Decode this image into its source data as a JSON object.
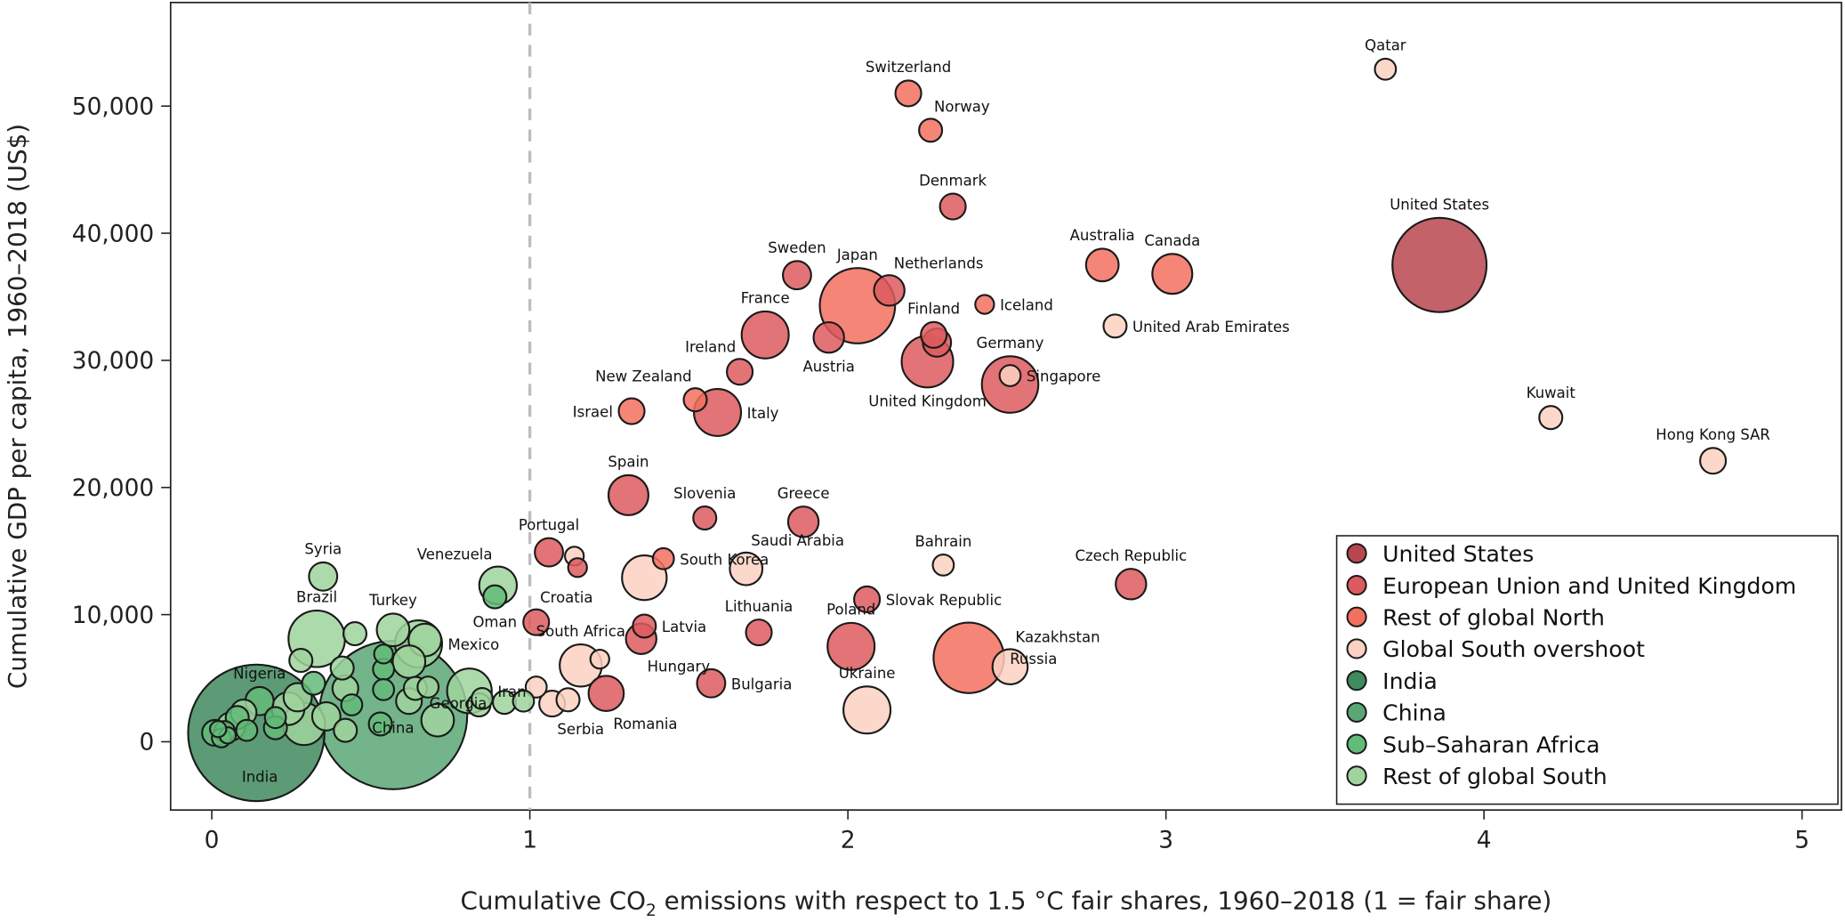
{
  "chart_data": {
    "type": "scatter",
    "bubble": true,
    "xlabel_parts": [
      "Cumulative CO",
      "2",
      " emissions with respect to 1.5 °C fair shares, 1960–2018 (1 = fair share)"
    ],
    "ylabel": "Cumulative GDP per capita, 1960–2018 (US$)",
    "xlim": [
      -0.13,
      5.1
    ],
    "ylim": [
      -5500,
      58000
    ],
    "xticks": [
      0,
      1,
      2,
      3,
      4,
      5
    ],
    "xtick_labels": [
      "0",
      "1",
      "2",
      "3",
      "4",
      "5"
    ],
    "yticks": [
      0,
      10000,
      20000,
      30000,
      40000,
      50000
    ],
    "ytick_labels": [
      "0",
      "10,000",
      "20,000",
      "30,000",
      "40,000",
      "50,000"
    ],
    "reference_line": {
      "x": 1,
      "style": "dashed",
      "color": "#bdbdbd"
    },
    "grid": false,
    "legend_placement": "bottom-right",
    "groups": [
      {
        "name": "United States",
        "color": "#b8464f"
      },
      {
        "name": "European Union and United Kingdom",
        "color": "#dd5a5e"
      },
      {
        "name": "Rest of global North",
        "color": "#f2705f"
      },
      {
        "name": "Global South overshoot",
        "color": "#fbd1c1"
      },
      {
        "name": "India",
        "color": "#3f8a5e"
      },
      {
        "name": "China",
        "color": "#5aa776"
      },
      {
        "name": "Sub–Saharan Africa",
        "color": "#63bb78"
      },
      {
        "name": "Rest of global South",
        "color": "#9fd49c"
      }
    ],
    "points": [
      {
        "label": "United States",
        "x": 3.86,
        "y": 37500,
        "size": 100,
        "group": 0,
        "pos": "above"
      },
      {
        "label": "Qatar",
        "x": 3.69,
        "y": 52900,
        "size": 5,
        "group": 3,
        "pos": "above"
      },
      {
        "label": "Switzerland",
        "x": 2.19,
        "y": 51000,
        "size": 7.5,
        "group": 2,
        "pos": "above"
      },
      {
        "label": "Norway",
        "x": 2.26,
        "y": 48100,
        "size": 6,
        "group": 2,
        "pos": "above-right"
      },
      {
        "label": "Denmark",
        "x": 2.33,
        "y": 42100,
        "size": 7.5,
        "group": 1,
        "pos": "above"
      },
      {
        "label": "Australia",
        "x": 2.8,
        "y": 37500,
        "size": 12,
        "group": 2,
        "pos": "above"
      },
      {
        "label": "Canada",
        "x": 3.02,
        "y": 36800,
        "size": 18,
        "group": 2,
        "pos": "above"
      },
      {
        "label": "Sweden",
        "x": 1.84,
        "y": 36700,
        "size": 9,
        "group": 1,
        "pos": "above"
      },
      {
        "label": "Japan",
        "x": 2.03,
        "y": 34300,
        "size": 64,
        "group": 2,
        "pos": "above"
      },
      {
        "label": "Netherlands",
        "x": 2.13,
        "y": 35500,
        "size": 10.5,
        "group": 1,
        "pos": "above-right"
      },
      {
        "label": "Iceland",
        "x": 2.43,
        "y": 34400,
        "size": 4,
        "group": 2,
        "pos": "right"
      },
      {
        "label": "United Arab Emirates",
        "x": 2.84,
        "y": 32700,
        "size": 6,
        "group": 3,
        "pos": "right"
      },
      {
        "label": "France",
        "x": 1.74,
        "y": 32000,
        "size": 25,
        "group": 1,
        "pos": "above"
      },
      {
        "label": "Finland",
        "x": 2.27,
        "y": 32000,
        "size": 7.5,
        "group": 1,
        "pos": "above"
      },
      {
        "label": "",
        "x": 2.28,
        "y": 31400,
        "size": 9,
        "group": 1,
        "pos": "none"
      },
      {
        "label": "Germany",
        "x": 2.51,
        "y": 28100,
        "size": 36,
        "group": 1,
        "pos": "above"
      },
      {
        "label": "Austria",
        "x": 1.94,
        "y": 31800,
        "size": 10.5,
        "group": 1,
        "pos": "below"
      },
      {
        "label": "Ireland",
        "x": 1.66,
        "y": 29100,
        "size": 7.5,
        "group": 1,
        "pos": "above-left"
      },
      {
        "label": "United Kingdom",
        "x": 2.25,
        "y": 29900,
        "size": 30,
        "group": 1,
        "pos": "below"
      },
      {
        "label": "Singapore",
        "x": 2.51,
        "y": 28800,
        "size": 5,
        "group": 3,
        "pos": "right"
      },
      {
        "label": "New Zealand",
        "x": 1.52,
        "y": 26900,
        "size": 6,
        "group": 2,
        "pos": "above-left"
      },
      {
        "label": "Italy",
        "x": 1.59,
        "y": 25900,
        "size": 25,
        "group": 1,
        "pos": "right"
      },
      {
        "label": "Israel",
        "x": 1.32,
        "y": 26000,
        "size": 7.5,
        "group": 2,
        "pos": "left"
      },
      {
        "label": "Kuwait",
        "x": 4.21,
        "y": 25500,
        "size": 6,
        "group": 3,
        "pos": "above"
      },
      {
        "label": "Hong Kong SAR",
        "x": 4.72,
        "y": 22100,
        "size": 7.5,
        "group": 3,
        "pos": "above"
      },
      {
        "label": "Spain",
        "x": 1.31,
        "y": 19400,
        "size": 18,
        "group": 1,
        "pos": "above"
      },
      {
        "label": "Slovenia",
        "x": 1.55,
        "y": 17600,
        "size": 6,
        "group": 1,
        "pos": "above"
      },
      {
        "label": "Greece",
        "x": 1.86,
        "y": 17300,
        "size": 10.5,
        "group": 1,
        "pos": "above"
      },
      {
        "label": "Portugal",
        "x": 1.06,
        "y": 14900,
        "size": 9,
        "group": 1,
        "pos": "above"
      },
      {
        "label": "",
        "x": 1.14,
        "y": 14600,
        "size": 4,
        "group": 3,
        "pos": "none"
      },
      {
        "label": "",
        "x": 1.15,
        "y": 13700,
        "size": 4,
        "group": 1,
        "pos": "none"
      },
      {
        "label": "South Korea",
        "x": 1.42,
        "y": 14400,
        "size": 5,
        "group": 2,
        "pos": "above-left"
      },
      {
        "label": "",
        "x": 1.36,
        "y": 12900,
        "size": 22.5,
        "group": 3,
        "pos": "none"
      },
      {
        "label": "Saudi Arabia",
        "x": 1.68,
        "y": 13600,
        "size": 12,
        "group": 3,
        "pos": "above-right"
      },
      {
        "label": "Bahrain",
        "x": 2.3,
        "y": 13900,
        "size": 5,
        "group": 3,
        "pos": "above"
      },
      {
        "label": "Czech Republic",
        "x": 2.89,
        "y": 12400,
        "size": 10.5,
        "group": 1,
        "pos": "above"
      },
      {
        "label": "Slovak Republic",
        "x": 2.06,
        "y": 11200,
        "size": 7.5,
        "group": 1,
        "pos": "above-left"
      },
      {
        "label": "Croatia",
        "x": 1.02,
        "y": 9400,
        "size": 7.5,
        "group": 1,
        "pos": "above-right"
      },
      {
        "label": "Latvia",
        "x": 1.36,
        "y": 9100,
        "size": 6,
        "group": 1,
        "pos": "right"
      },
      {
        "label": "Hungary",
        "x": 1.35,
        "y": 8100,
        "size": 10.5,
        "group": 1,
        "pos": "below-right"
      },
      {
        "label": "Lithuania",
        "x": 1.72,
        "y": 8600,
        "size": 7.5,
        "group": 1,
        "pos": "above"
      },
      {
        "label": "Poland",
        "x": 2.01,
        "y": 7500,
        "size": 25,
        "group": 1,
        "pos": "above"
      },
      {
        "label": "Russia",
        "x": 2.38,
        "y": 6600,
        "size": 56,
        "group": 2,
        "pos": "above"
      },
      {
        "label": "Kazakhstan",
        "x": 2.51,
        "y": 5900,
        "size": 14,
        "group": 3,
        "pos": "above-right"
      },
      {
        "label": "South Africa",
        "x": 1.16,
        "y": 6000,
        "size": 20,
        "group": 3,
        "pos": "above"
      },
      {
        "label": "",
        "x": 1.22,
        "y": 6500,
        "size": 4,
        "group": 3,
        "pos": "none"
      },
      {
        "label": "Bulgaria",
        "x": 1.57,
        "y": 4600,
        "size": 9,
        "group": 1,
        "pos": "right"
      },
      {
        "label": "Romania",
        "x": 1.24,
        "y": 3800,
        "size": 14,
        "group": 1,
        "pos": "below-right"
      },
      {
        "label": "Ukraine",
        "x": 2.06,
        "y": 2500,
        "size": 25,
        "group": 3,
        "pos": "above"
      },
      {
        "label": "",
        "x": 1.02,
        "y": 4300,
        "size": 5,
        "group": 3,
        "pos": "none"
      },
      {
        "label": "Serbia",
        "x": 1.07,
        "y": 3000,
        "size": 7.5,
        "group": 3,
        "pos": "below-right"
      },
      {
        "label": "",
        "x": 1.12,
        "y": 3300,
        "size": 6,
        "group": 3,
        "pos": "none"
      },
      {
        "label": "Syria",
        "x": 0.35,
        "y": 13000,
        "size": 9,
        "group": 7,
        "pos": "above"
      },
      {
        "label": "Venezuela",
        "x": 0.9,
        "y": 12300,
        "size": 16,
        "group": 7,
        "pos": "above-left"
      },
      {
        "label": "Oman",
        "x": 0.89,
        "y": 11400,
        "size": 6,
        "group": 6,
        "pos": "below"
      },
      {
        "label": "Brazil",
        "x": 0.33,
        "y": 8100,
        "size": 36,
        "group": 7,
        "pos": "above"
      },
      {
        "label": "Turkey",
        "x": 0.57,
        "y": 8800,
        "size": 12,
        "group": 7,
        "pos": "above"
      },
      {
        "label": "Mexico",
        "x": 0.65,
        "y": 7700,
        "size": 25,
        "group": 7,
        "pos": "right"
      },
      {
        "label": "Iran",
        "x": 0.81,
        "y": 4000,
        "size": 22.5,
        "group": 7,
        "pos": "above"
      },
      {
        "label": "Georgia",
        "x": 0.92,
        "y": 3100,
        "size": 6,
        "group": 7,
        "pos": "below-left"
      },
      {
        "label": "China",
        "x": 0.57,
        "y": 2100,
        "size": 248,
        "group": 5,
        "pos": "inside"
      },
      {
        "label": "India",
        "x": 0.14,
        "y": 700,
        "size": 210,
        "group": 4,
        "pos": "inside-below"
      },
      {
        "label": "Nigeria",
        "x": 0.15,
        "y": 3200,
        "size": 9,
        "group": 6,
        "pos": "above"
      },
      {
        "label": "",
        "x": 0.45,
        "y": 8500,
        "size": 6,
        "group": 7,
        "pos": "none"
      },
      {
        "label": "",
        "x": 0.67,
        "y": 8000,
        "size": 12,
        "group": 7,
        "pos": "none"
      },
      {
        "label": "",
        "x": 0.62,
        "y": 6300,
        "size": 12,
        "group": 7,
        "pos": "none"
      },
      {
        "label": "",
        "x": 0.54,
        "y": 6900,
        "size": 4,
        "group": 6,
        "pos": "none"
      },
      {
        "label": "",
        "x": 0.54,
        "y": 5700,
        "size": 5,
        "group": 6,
        "pos": "none"
      },
      {
        "label": "",
        "x": 0.54,
        "y": 4100,
        "size": 5,
        "group": 6,
        "pos": "none"
      },
      {
        "label": "",
        "x": 0.53,
        "y": 1400,
        "size": 6,
        "group": 6,
        "pos": "none"
      },
      {
        "label": "",
        "x": 0.64,
        "y": 4200,
        "size": 6,
        "group": 7,
        "pos": "none"
      },
      {
        "label": "",
        "x": 0.68,
        "y": 4300,
        "size": 5,
        "group": 7,
        "pos": "none"
      },
      {
        "label": "",
        "x": 0.62,
        "y": 3200,
        "size": 7.5,
        "group": 7,
        "pos": "none"
      },
      {
        "label": "",
        "x": 0.71,
        "y": 1700,
        "size": 12,
        "group": 7,
        "pos": "none"
      },
      {
        "label": "",
        "x": 0.85,
        "y": 3400,
        "size": 5,
        "group": 7,
        "pos": "none"
      },
      {
        "label": "",
        "x": 0.84,
        "y": 2900,
        "size": 6,
        "group": 7,
        "pos": "none"
      },
      {
        "label": "",
        "x": 0.98,
        "y": 3200,
        "size": 5,
        "group": 7,
        "pos": "none"
      },
      {
        "label": "",
        "x": 0.28,
        "y": 6400,
        "size": 6,
        "group": 7,
        "pos": "none"
      },
      {
        "label": "",
        "x": 0.32,
        "y": 4600,
        "size": 6,
        "group": 6,
        "pos": "none"
      },
      {
        "label": "",
        "x": 0.41,
        "y": 5800,
        "size": 6,
        "group": 7,
        "pos": "none"
      },
      {
        "label": "",
        "x": 0.42,
        "y": 4200,
        "size": 7.5,
        "group": 7,
        "pos": "none"
      },
      {
        "label": "",
        "x": 0.44,
        "y": 2900,
        "size": 5,
        "group": 6,
        "pos": "none"
      },
      {
        "label": "",
        "x": 0.42,
        "y": 900,
        "size": 6,
        "group": 7,
        "pos": "none"
      },
      {
        "label": "",
        "x": 0.27,
        "y": 3500,
        "size": 9,
        "group": 7,
        "pos": "none"
      },
      {
        "label": "",
        "x": 0.29,
        "y": 1400,
        "size": 20,
        "group": 7,
        "pos": "none"
      },
      {
        "label": "",
        "x": 0.2,
        "y": 1900,
        "size": 5,
        "group": 6,
        "pos": "none"
      },
      {
        "label": "",
        "x": 0.2,
        "y": 1100,
        "size": 6,
        "group": 6,
        "pos": "none"
      },
      {
        "label": "",
        "x": 0.11,
        "y": 900,
        "size": 5,
        "group": 6,
        "pos": "none"
      },
      {
        "label": "",
        "x": 0.04,
        "y": 800,
        "size": 5,
        "group": 6,
        "pos": "none"
      },
      {
        "label": "",
        "x": 0.06,
        "y": 1200,
        "size": 9,
        "group": 7,
        "pos": "none"
      },
      {
        "label": "",
        "x": 0.01,
        "y": 700,
        "size": 7.5,
        "group": 6,
        "pos": "none"
      },
      {
        "label": "",
        "x": 0.08,
        "y": 1900,
        "size": 6,
        "group": 6,
        "pos": "none"
      },
      {
        "label": "",
        "x": 0.03,
        "y": 300,
        "size": 4,
        "group": 6,
        "pos": "none"
      },
      {
        "label": "",
        "x": 0.05,
        "y": 500,
        "size": 3,
        "group": 6,
        "pos": "none"
      },
      {
        "label": "",
        "x": 0.02,
        "y": 1000,
        "size": 3,
        "group": 6,
        "pos": "none"
      },
      {
        "label": "",
        "x": 0.1,
        "y": 2300,
        "size": 7.5,
        "group": 7,
        "pos": "none"
      },
      {
        "label": "",
        "x": 0.24,
        "y": 2600,
        "size": 12,
        "group": 7,
        "pos": "none"
      },
      {
        "label": "",
        "x": 0.36,
        "y": 2000,
        "size": 9,
        "group": 7,
        "pos": "none"
      }
    ]
  }
}
